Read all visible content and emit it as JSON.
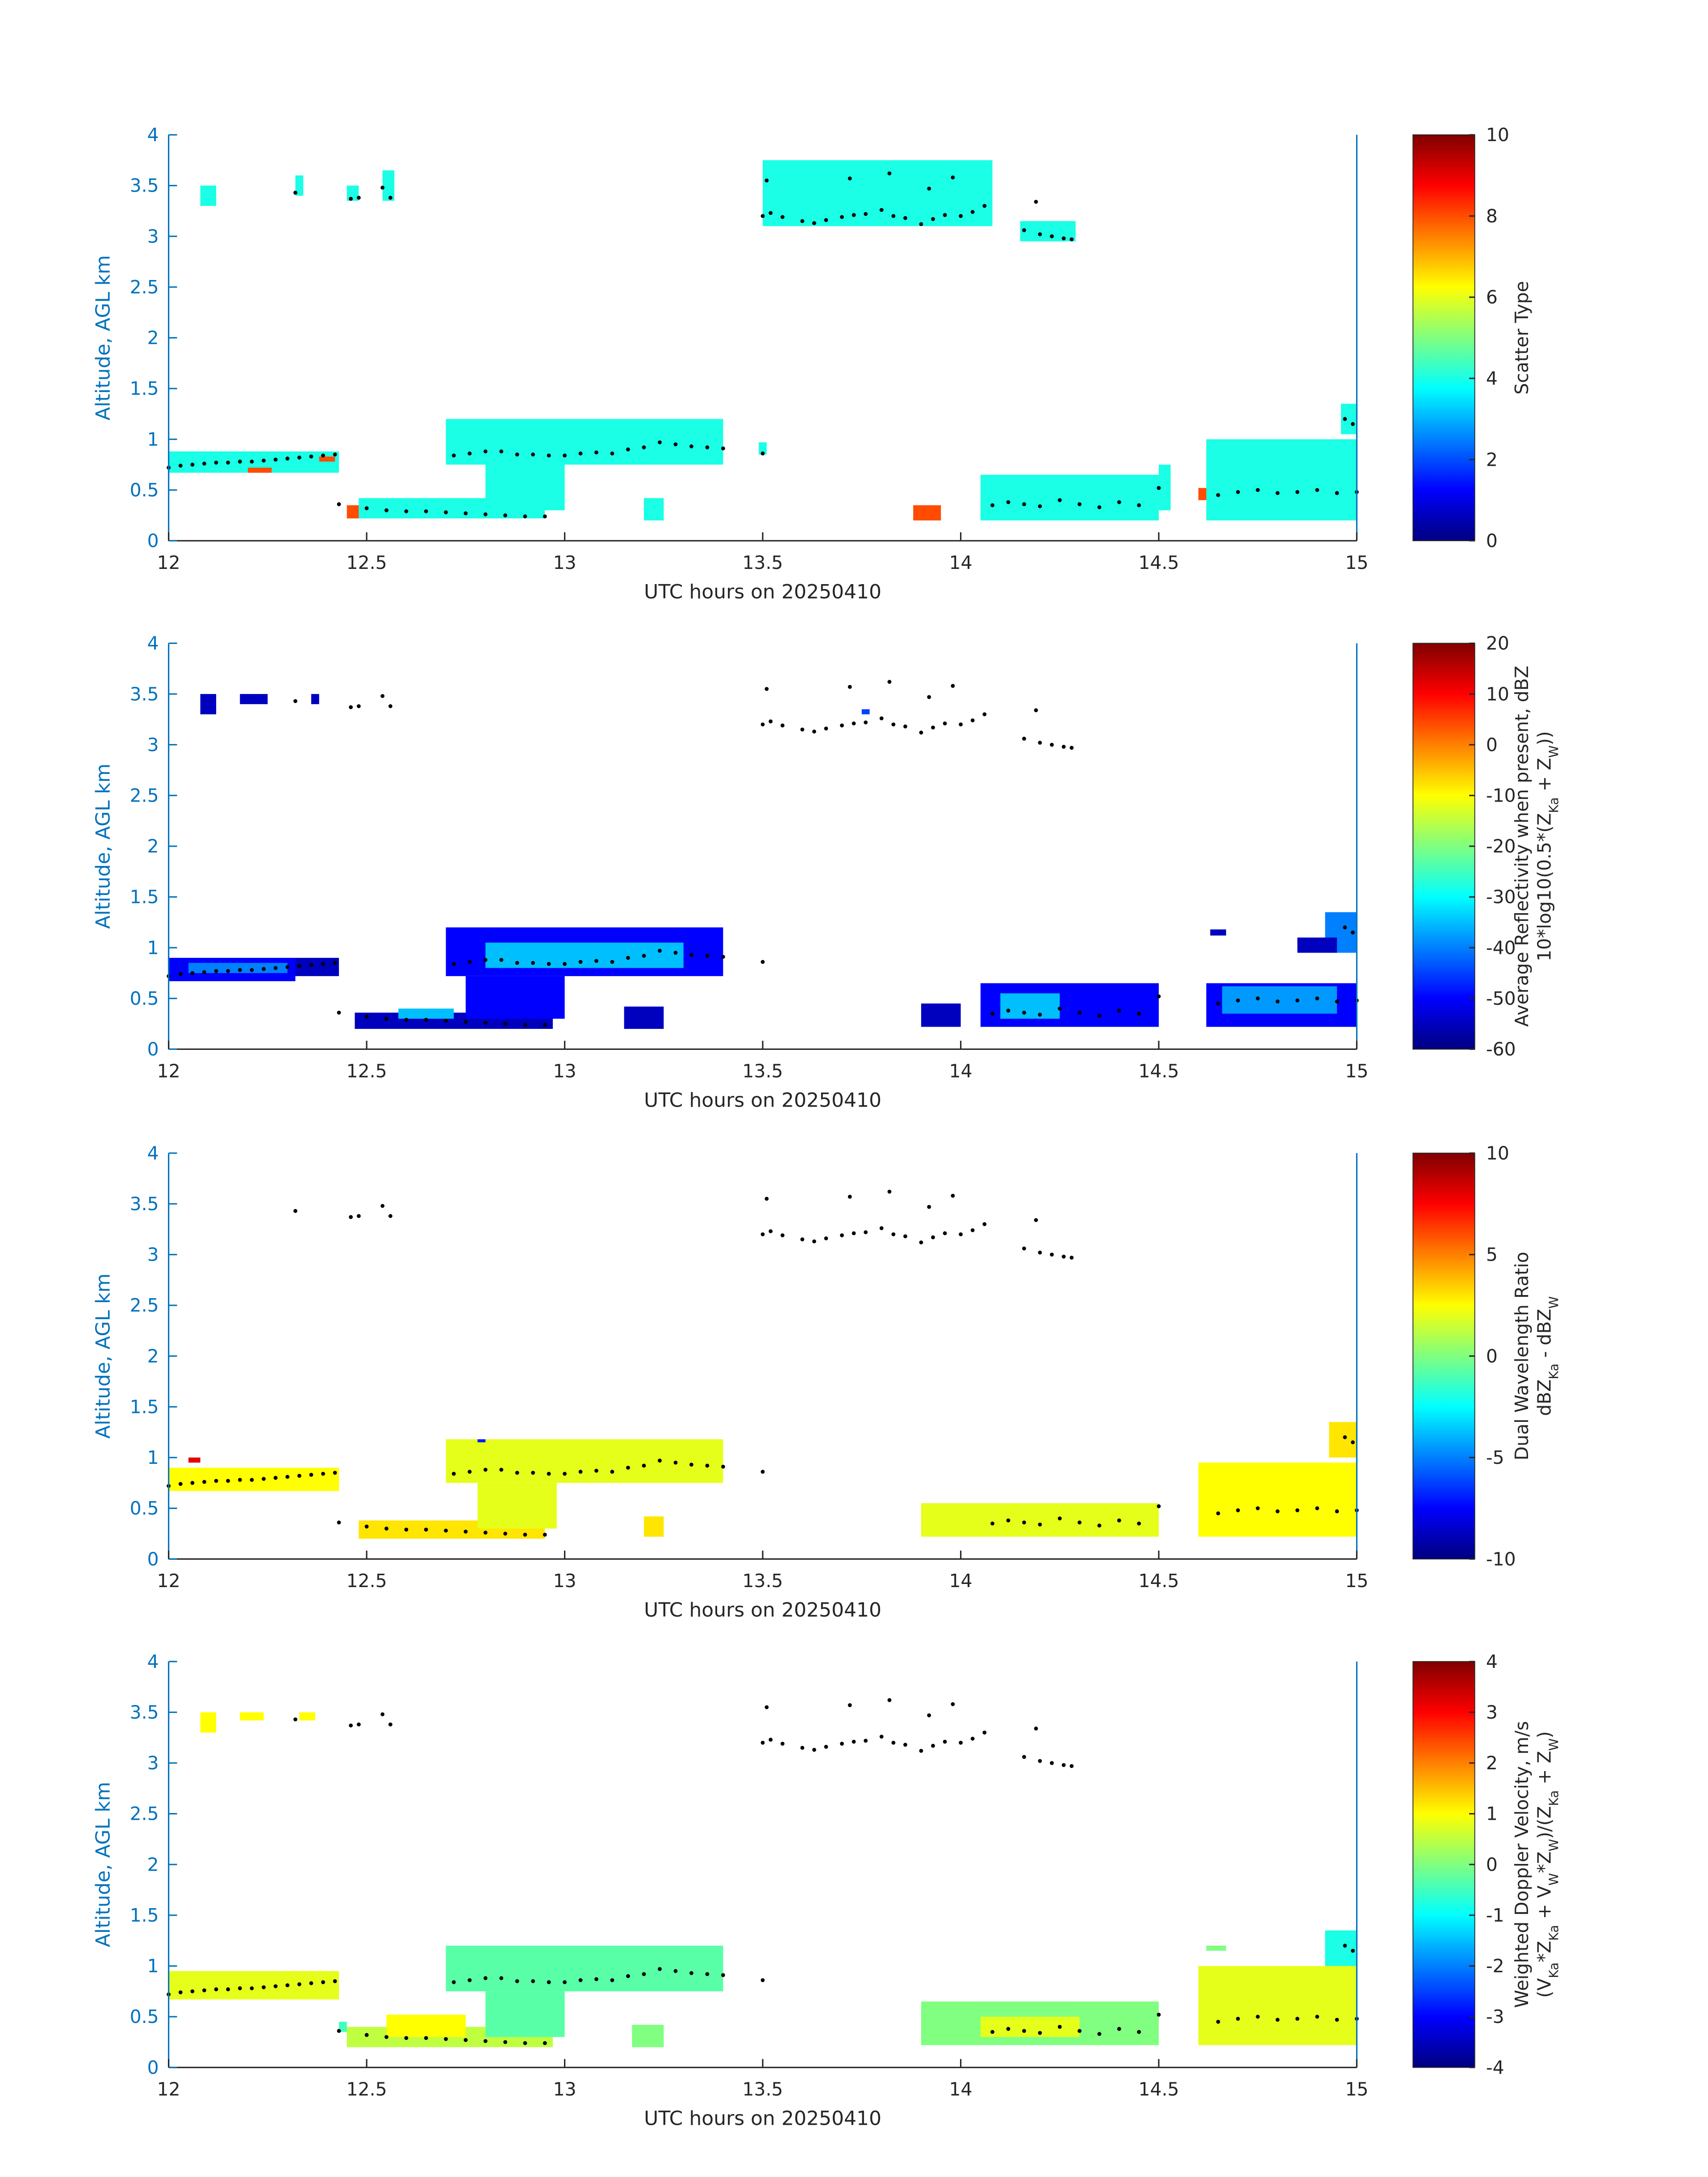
{
  "chart_data": [
    {
      "type": "heatmap",
      "x_label": "UTC hours on 20250410",
      "y_label": "Altitude, AGL km",
      "colorbar_label": [
        [
          "Scatter Type"
        ]
      ],
      "colormap": "jet",
      "xlim": [
        12,
        15
      ],
      "xticks": [
        12,
        12.5,
        13,
        13.5,
        14,
        14.5,
        15
      ],
      "ylim": [
        0,
        4
      ],
      "yticks": [
        0,
        0.5,
        1,
        1.5,
        2,
        2.5,
        3,
        3.5,
        4
      ],
      "clim": [
        0,
        10
      ],
      "cticks": [
        0,
        2,
        4,
        6,
        8,
        10
      ],
      "cells": [
        [
          12.08,
          12.12,
          3.3,
          3.5,
          4
        ],
        [
          12.32,
          12.34,
          3.4,
          3.6,
          4
        ],
        [
          12.45,
          12.48,
          3.35,
          3.5,
          4
        ],
        [
          12.54,
          12.57,
          3.35,
          3.65,
          4
        ],
        [
          12.0,
          12.43,
          0.67,
          0.88,
          4
        ],
        [
          12.2,
          12.26,
          0.67,
          0.72,
          8
        ],
        [
          12.38,
          12.42,
          0.78,
          0.83,
          8
        ],
        [
          12.48,
          12.95,
          0.22,
          0.42,
          4
        ],
        [
          12.45,
          12.48,
          0.22,
          0.35,
          8
        ],
        [
          12.7,
          13.4,
          0.75,
          1.2,
          4
        ],
        [
          12.8,
          13.0,
          0.3,
          0.75,
          4
        ],
        [
          13.2,
          13.25,
          0.2,
          0.42,
          4
        ],
        [
          13.5,
          14.08,
          3.1,
          3.75,
          4
        ],
        [
          14.15,
          14.29,
          2.95,
          3.15,
          4
        ],
        [
          14.05,
          14.5,
          0.2,
          0.65,
          4
        ],
        [
          13.88,
          13.95,
          0.2,
          0.35,
          8
        ],
        [
          14.5,
          14.53,
          0.3,
          0.75,
          4
        ],
        [
          14.62,
          15.0,
          0.2,
          1.0,
          4
        ],
        [
          14.6,
          14.62,
          0.4,
          0.52,
          8
        ],
        [
          14.96,
          15.0,
          1.05,
          1.35,
          4
        ],
        [
          13.49,
          13.51,
          0.85,
          0.97,
          4
        ]
      ]
    },
    {
      "type": "heatmap",
      "x_label": "UTC hours on 20250410",
      "y_label": "Altitude, AGL km",
      "colorbar_label": [
        [
          "Average Reflectivity when present, dBZ"
        ],
        [
          "10*log10(0.5*(Z",
          {
            "sub": "Ka"
          },
          " + Z",
          {
            "sub": "W"
          },
          "))"
        ]
      ],
      "colormap": "jet",
      "xlim": [
        12,
        15
      ],
      "xticks": [
        12,
        12.5,
        13,
        13.5,
        14,
        14.5,
        15
      ],
      "ylim": [
        0,
        4
      ],
      "yticks": [
        0,
        0.5,
        1,
        1.5,
        2,
        2.5,
        3,
        3.5,
        4
      ],
      "clim": [
        -60,
        20
      ],
      "cticks": [
        -60,
        -50,
        -40,
        -30,
        -20,
        -10,
        0,
        10,
        20
      ],
      "cells": [
        [
          12.0,
          12.32,
          0.67,
          0.9,
          -50
        ],
        [
          12.05,
          12.3,
          0.75,
          0.85,
          -40
        ],
        [
          12.32,
          12.43,
          0.72,
          0.9,
          -55
        ],
        [
          12.08,
          12.12,
          3.3,
          3.5,
          -55
        ],
        [
          12.18,
          12.25,
          3.4,
          3.5,
          -55
        ],
        [
          12.36,
          12.38,
          3.4,
          3.5,
          -55
        ],
        [
          12.47,
          12.97,
          0.2,
          0.36,
          -55
        ],
        [
          12.58,
          12.72,
          0.3,
          0.4,
          -35
        ],
        [
          12.7,
          13.4,
          0.72,
          1.2,
          -50
        ],
        [
          12.8,
          13.3,
          0.8,
          1.05,
          -35
        ],
        [
          12.75,
          13.0,
          0.3,
          0.72,
          -50
        ],
        [
          13.15,
          13.25,
          0.2,
          0.42,
          -55
        ],
        [
          13.9,
          14.0,
          0.22,
          0.45,
          -55
        ],
        [
          14.05,
          14.5,
          0.22,
          0.65,
          -50
        ],
        [
          14.1,
          14.25,
          0.3,
          0.55,
          -35
        ],
        [
          14.62,
          15.0,
          0.22,
          0.65,
          -50
        ],
        [
          14.66,
          14.95,
          0.35,
          0.62,
          -38
        ],
        [
          14.92,
          15.0,
          0.95,
          1.35,
          -40
        ],
        [
          14.85,
          14.95,
          0.95,
          1.1,
          -55
        ],
        [
          14.63,
          14.67,
          1.12,
          1.18,
          -55
        ],
        [
          13.75,
          13.77,
          3.3,
          3.35,
          -45
        ]
      ]
    },
    {
      "type": "heatmap",
      "x_label": "UTC hours on 20250410",
      "y_label": "Altitude, AGL km",
      "colorbar_label": [
        [
          "Dual Wavelength Ratio"
        ],
        [
          "dBZ",
          {
            "sub": "Ka"
          },
          " - dBZ",
          {
            "sub": "W"
          }
        ]
      ],
      "colormap": "jet",
      "xlim": [
        12,
        15
      ],
      "xticks": [
        12,
        12.5,
        13,
        13.5,
        14,
        14.5,
        15
      ],
      "ylim": [
        0,
        4
      ],
      "yticks": [
        0,
        0.5,
        1,
        1.5,
        2,
        2.5,
        3,
        3.5,
        4
      ],
      "clim": [
        -10,
        10
      ],
      "cticks": [
        -10,
        -5,
        0,
        5,
        10
      ],
      "cells": [
        [
          12.0,
          12.43,
          0.67,
          0.9,
          2.5
        ],
        [
          12.48,
          12.95,
          0.2,
          0.38,
          3
        ],
        [
          12.7,
          13.4,
          0.75,
          1.18,
          2
        ],
        [
          12.78,
          12.98,
          0.3,
          0.75,
          2
        ],
        [
          13.2,
          13.25,
          0.22,
          0.42,
          3
        ],
        [
          13.9,
          14.5,
          0.22,
          0.55,
          2
        ],
        [
          14.6,
          15.0,
          0.22,
          0.95,
          2.5
        ],
        [
          14.93,
          15.0,
          1.0,
          1.35,
          3
        ],
        [
          12.05,
          12.08,
          0.95,
          1.0,
          8
        ],
        [
          12.78,
          12.8,
          1.15,
          1.18,
          -7
        ]
      ]
    },
    {
      "type": "heatmap",
      "x_label": "UTC hours on 20250410",
      "y_label": "Altitude, AGL km",
      "colorbar_label": [
        [
          "Weighted Doppler Velocity, m/s"
        ],
        [
          "(V",
          {
            "sub": "Ka"
          },
          "*Z",
          {
            "sub": "Ka"
          },
          " + V",
          {
            "sub": "W"
          },
          "*Z",
          {
            "sub": "W"
          },
          ")/(Z",
          {
            "sub": "Ka"
          },
          " + Z",
          {
            "sub": "W"
          },
          ")"
        ]
      ],
      "colormap": "jet",
      "xlim": [
        12,
        15
      ],
      "xticks": [
        12,
        12.5,
        13,
        13.5,
        14,
        14.5,
        15
      ],
      "ylim": [
        0,
        4
      ],
      "yticks": [
        0,
        0.5,
        1,
        1.5,
        2,
        2.5,
        3,
        3.5,
        4
      ],
      "clim": [
        -4,
        4
      ],
      "cticks": [
        -4,
        -3,
        -2,
        -1,
        0,
        1,
        2,
        3,
        4
      ],
      "cells": [
        [
          12.0,
          12.43,
          0.67,
          0.95,
          0.8
        ],
        [
          12.08,
          12.12,
          3.3,
          3.5,
          1
        ],
        [
          12.18,
          12.24,
          3.42,
          3.5,
          1
        ],
        [
          12.33,
          12.37,
          3.42,
          3.5,
          1
        ],
        [
          12.45,
          12.97,
          0.2,
          0.4,
          0.5
        ],
        [
          12.55,
          12.75,
          0.3,
          0.52,
          1
        ],
        [
          12.7,
          13.4,
          0.75,
          1.2,
          -0.3
        ],
        [
          12.8,
          13.0,
          0.3,
          0.75,
          -0.3
        ],
        [
          13.17,
          13.25,
          0.2,
          0.42,
          0
        ],
        [
          13.9,
          14.5,
          0.22,
          0.65,
          0
        ],
        [
          14.05,
          14.3,
          0.3,
          0.5,
          0.8
        ],
        [
          14.6,
          15.0,
          0.22,
          1.0,
          0.8
        ],
        [
          14.92,
          15.0,
          1.0,
          1.35,
          -0.8
        ],
        [
          12.43,
          12.45,
          0.35,
          0.45,
          -0.5
        ],
        [
          14.62,
          14.67,
          1.15,
          1.2,
          0
        ]
      ]
    }
  ],
  "markers": {
    "color": "#000000",
    "x": [
      12.32,
      12.46,
      12.48,
      12.54,
      12.56,
      12.0,
      12.03,
      12.06,
      12.09,
      12.12,
      12.15,
      12.18,
      12.21,
      12.24,
      12.27,
      12.3,
      12.33,
      12.36,
      12.39,
      12.42,
      12.43,
      12.5,
      12.55,
      12.6,
      12.65,
      12.7,
      12.75,
      12.8,
      12.85,
      12.9,
      12.95,
      12.72,
      12.76,
      12.8,
      12.84,
      12.88,
      12.92,
      12.96,
      13.0,
      13.04,
      13.08,
      13.12,
      13.16,
      13.2,
      13.24,
      13.28,
      13.32,
      13.36,
      13.4,
      13.5,
      13.5,
      13.52,
      13.55,
      13.6,
      13.63,
      13.66,
      13.7,
      13.73,
      13.76,
      13.8,
      13.83,
      13.86,
      13.9,
      13.93,
      13.96,
      14.0,
      14.03,
      14.06,
      13.51,
      13.72,
      13.82,
      13.92,
      13.98,
      14.16,
      14.19,
      14.2,
      14.23,
      14.26,
      14.28,
      14.08,
      14.12,
      14.16,
      14.2,
      14.25,
      14.3,
      14.35,
      14.4,
      14.45,
      14.5,
      14.65,
      14.7,
      14.75,
      14.8,
      14.85,
      14.9,
      14.95,
      15.0,
      14.97,
      14.99
    ],
    "y": [
      3.43,
      3.37,
      3.38,
      3.48,
      3.38,
      0.72,
      0.74,
      0.75,
      0.76,
      0.77,
      0.77,
      0.78,
      0.78,
      0.79,
      0.8,
      0.81,
      0.82,
      0.83,
      0.84,
      0.85,
      0.36,
      0.32,
      0.3,
      0.29,
      0.29,
      0.28,
      0.27,
      0.26,
      0.25,
      0.24,
      0.24,
      0.84,
      0.86,
      0.88,
      0.88,
      0.85,
      0.85,
      0.84,
      0.84,
      0.86,
      0.87,
      0.86,
      0.9,
      0.92,
      0.97,
      0.95,
      0.93,
      0.92,
      0.91,
      0.86,
      3.2,
      3.23,
      3.19,
      3.15,
      3.13,
      3.16,
      3.19,
      3.21,
      3.22,
      3.26,
      3.2,
      3.18,
      3.12,
      3.17,
      3.21,
      3.2,
      3.24,
      3.3,
      3.55,
      3.57,
      3.62,
      3.47,
      3.58,
      3.06,
      3.34,
      3.02,
      3.0,
      2.98,
      2.97,
      0.35,
      0.38,
      0.36,
      0.34,
      0.4,
      0.36,
      0.33,
      0.38,
      0.35,
      0.52,
      0.45,
      0.48,
      0.5,
      0.47,
      0.48,
      0.5,
      0.47,
      0.48,
      1.2,
      1.15
    ]
  }
}
